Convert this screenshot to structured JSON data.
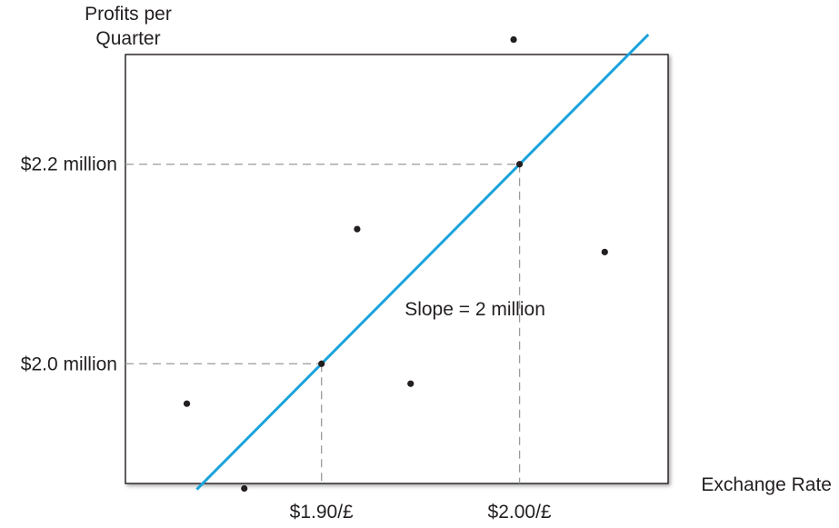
{
  "chart_data": {
    "type": "scatter",
    "title": "",
    "ylabel_lines": [
      "Profits per",
      "Quarter"
    ],
    "xlabel": "Exchange Rate",
    "xlim": [
      1.801,
      2.075
    ],
    "ylim": [
      1.88,
      2.31
    ],
    "x_ticks": [
      {
        "value": 1.9,
        "label": "$1.90/£"
      },
      {
        "value": 2.0,
        "label": "$2.00/£"
      }
    ],
    "y_ticks": [
      {
        "value": 2.0,
        "label": "$2.0 million"
      },
      {
        "value": 2.2,
        "label": "$2.2 million"
      }
    ],
    "points": [
      {
        "x": 1.832,
        "y": 1.96
      },
      {
        "x": 1.861,
        "y": 1.875
      },
      {
        "x": 1.918,
        "y": 2.135
      },
      {
        "x": 1.945,
        "y": 1.98
      },
      {
        "x": 1.997,
        "y": 2.325
      },
      {
        "x": 2.043,
        "y": 2.112
      }
    ],
    "regression_line": {
      "x": [
        1.837,
        2.065
      ],
      "y": [
        1.874,
        2.33
      ],
      "color": "#1aa3dc"
    },
    "reference_points": [
      {
        "x": 1.9,
        "y": 2.0
      },
      {
        "x": 2.0,
        "y": 2.2
      }
    ],
    "annotation": {
      "text": "Slope = 2 million",
      "x": 1.942,
      "y": 2.055
    },
    "grid": false,
    "colors": {
      "axis": "#231f20",
      "points": "#231f20",
      "guides": "#9a9a9a",
      "line": "#1aa3dc"
    }
  }
}
